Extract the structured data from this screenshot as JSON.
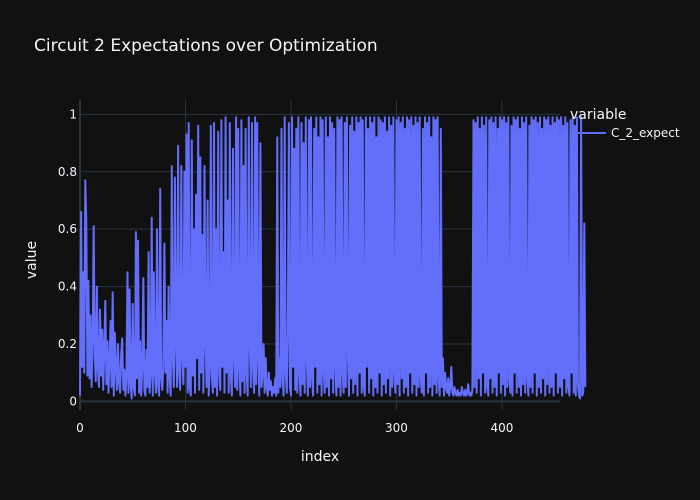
{
  "chart_data": {
    "type": "line",
    "title": "Circuit 2 Expectations over Optimization",
    "xlabel": "index",
    "ylabel": "value",
    "xlim": [
      0,
      455
    ],
    "ylim": [
      -0.03,
      1.05
    ],
    "x_ticks": [
      0,
      100,
      200,
      300,
      400
    ],
    "y_ticks": [
      0,
      0.2,
      0.4,
      0.6,
      0.8,
      1
    ],
    "x_tick_labels": [
      "0",
      "100",
      "200",
      "300",
      "400"
    ],
    "y_tick_labels": [
      "0",
      "0.2",
      "0.4",
      "0.6",
      "0.8",
      "1"
    ],
    "grid": true,
    "legend": {
      "title": "variable",
      "position": "top-right"
    },
    "colors": {
      "background": "#111111",
      "grid": "#283442",
      "line": "#636efa",
      "text": "#f2f5fa"
    },
    "series": [
      {
        "name": "C_2_expect",
        "x_start": 0,
        "x_step": 1,
        "values": [
          0.02,
          0.66,
          0.12,
          0.45,
          0.1,
          0.77,
          0.62,
          0.09,
          0.42,
          0.08,
          0.3,
          0.05,
          0.22,
          0.61,
          0.15,
          0.07,
          0.4,
          0.12,
          0.05,
          0.32,
          0.09,
          0.25,
          0.04,
          0.18,
          0.35,
          0.06,
          0.21,
          0.03,
          0.14,
          0.28,
          0.05,
          0.38,
          0.02,
          0.24,
          0.12,
          0.04,
          0.2,
          0.07,
          0.03,
          0.16,
          0.22,
          0.04,
          0.11,
          0.02,
          0.08,
          0.45,
          0.03,
          0.39,
          0.06,
          0.01,
          0.34,
          0.05,
          0.02,
          0.59,
          0.08,
          0.56,
          0.03,
          0.21,
          0.02,
          0.11,
          0.43,
          0.04,
          0.02,
          0.18,
          0.05,
          0.52,
          0.03,
          0.09,
          0.64,
          0.02,
          0.45,
          0.1,
          0.03,
          0.6,
          0.06,
          0.02,
          0.74,
          0.08,
          0.04,
          0.12,
          0.55,
          0.1,
          0.28,
          0.03,
          0.4,
          0.08,
          0.02,
          0.82,
          0.15,
          0.05,
          0.78,
          0.2,
          0.05,
          0.89,
          0.1,
          0.04,
          0.82,
          0.15,
          0.06,
          0.8,
          0.12,
          0.93,
          0.03,
          0.97,
          0.05,
          0.02,
          0.91,
          0.09,
          0.6,
          0.03,
          0.72,
          0.15,
          0.96,
          0.04,
          0.85,
          0.1,
          0.58,
          0.03,
          0.82,
          0.22,
          0.05,
          0.7,
          0.02,
          0.12,
          0.96,
          0.08,
          0.03,
          0.97,
          0.05,
          0.6,
          0.02,
          0.94,
          0.1,
          0.04,
          0.98,
          0.12,
          0.52,
          0.03,
          0.99,
          0.1,
          0.7,
          0.03,
          0.97,
          0.08,
          0.02,
          0.88,
          0.15,
          0.05,
          0.99,
          0.04,
          0.95,
          0.11,
          0.02,
          0.98,
          0.07,
          0.82,
          0.03,
          0.95,
          0.1,
          0.02,
          0.99,
          0.2,
          0.05,
          0.97,
          0.12,
          0.03,
          0.99,
          0.06,
          0.97,
          0.15,
          0.02,
          0.9,
          0.05,
          0.1,
          0.2,
          0.03,
          0.15,
          0.05,
          0.02,
          0.1,
          0.04,
          0.07,
          0.02,
          0.05,
          0.03,
          0.08,
          0.02,
          0.92,
          0.03,
          0.15,
          0.05,
          0.95,
          0.08,
          0.02,
          0.99,
          0.1,
          0.03,
          0.25,
          0.97,
          0.05,
          0.02,
          0.99,
          0.12,
          0.88,
          0.04,
          0.95,
          0.03,
          0.99,
          0.1,
          0.02,
          0.97,
          0.06,
          0.9,
          0.03,
          0.99,
          0.15,
          0.02,
          0.98,
          0.05,
          0.99,
          0.08,
          0.02,
          0.95,
          0.12,
          0.99,
          0.03,
          0.92,
          0.06,
          0.99,
          0.02,
          0.98,
          0.1,
          0.03,
          0.99,
          0.05,
          0.92,
          0.02,
          0.99,
          0.08,
          0.97,
          0.03,
          0.95,
          0.12,
          0.02,
          0.99,
          0.05,
          0.98,
          0.02,
          0.99,
          0.1,
          0.03,
          0.97,
          0.05,
          0.99,
          0.15,
          0.02,
          0.96,
          0.08,
          0.99,
          0.03,
          0.94,
          0.06,
          0.99,
          0.02,
          0.97,
          0.1,
          0.99,
          0.03,
          0.98,
          0.05,
          0.02,
          0.99,
          0.12,
          0.95,
          0.03,
          0.99,
          0.08,
          0.97,
          0.02,
          0.99,
          0.05,
          0.92,
          0.03,
          0.99,
          0.1,
          0.98,
          0.02,
          0.97,
          0.06,
          0.99,
          0.03,
          0.94,
          0.08,
          0.99,
          0.02,
          0.96,
          0.05,
          0.99,
          0.1,
          0.03,
          0.98,
          0.06,
          0.99,
          0.02,
          0.97,
          0.08,
          0.99,
          0.03,
          0.95,
          0.05,
          0.99,
          0.02,
          0.98,
          0.1,
          0.99,
          0.03,
          0.96,
          0.06,
          0.99,
          0.02,
          0.97,
          0.05,
          0.99,
          0.08,
          0.03,
          0.95,
          0.02,
          0.99,
          0.1,
          0.97,
          0.03,
          0.99,
          0.05,
          0.92,
          0.02,
          0.99,
          0.06,
          0.98,
          0.03,
          0.99,
          0.08,
          0.02,
          0.95,
          0.05,
          0.15,
          0.02,
          0.1,
          0.05,
          0.03,
          0.08,
          0.02,
          0.05,
          0.12,
          0.03,
          0.02,
          0.05,
          0.03,
          0.02,
          0.04,
          0.02,
          0.03,
          0.02,
          0.05,
          0.03,
          0.02,
          0.04,
          0.02,
          0.03,
          0.06,
          0.02,
          0.03,
          0.02,
          0.04,
          0.98,
          0.05,
          0.97,
          0.03,
          0.99,
          0.08,
          0.95,
          0.02,
          0.99,
          0.1,
          0.96,
          0.03,
          0.99,
          0.05,
          0.02,
          0.98,
          0.08,
          0.99,
          0.03,
          0.97,
          0.05,
          0.99,
          0.02,
          0.95,
          0.1,
          0.99,
          0.03,
          0.98,
          0.06,
          0.99,
          0.02,
          0.97,
          0.05,
          0.99,
          0.08,
          0.03,
          0.96,
          0.02,
          0.99,
          0.1,
          0.98,
          0.03,
          0.99,
          0.05,
          0.95,
          0.02,
          0.99,
          0.06,
          0.97,
          0.03,
          0.99,
          0.08,
          0.02,
          0.96,
          0.05,
          0.99,
          0.03,
          0.98,
          0.1,
          0.99,
          0.02,
          0.97,
          0.05,
          0.99,
          0.03,
          0.95,
          0.08,
          0.99,
          0.02,
          0.98,
          0.06,
          0.99,
          0.03,
          0.96,
          0.05,
          0.99,
          0.02,
          0.97,
          0.1,
          0.99,
          0.03,
          0.98,
          0.05,
          0.99,
          0.02,
          0.96,
          0.08,
          0.99,
          0.03,
          0.97,
          0.05,
          0.02,
          0.98,
          0.1,
          0.99,
          0.03,
          0.96,
          0.02,
          0.99,
          0.06,
          0.02,
          0.01,
          0.99,
          0.02,
          0.03,
          0.62,
          0.05
        ]
      }
    ]
  }
}
